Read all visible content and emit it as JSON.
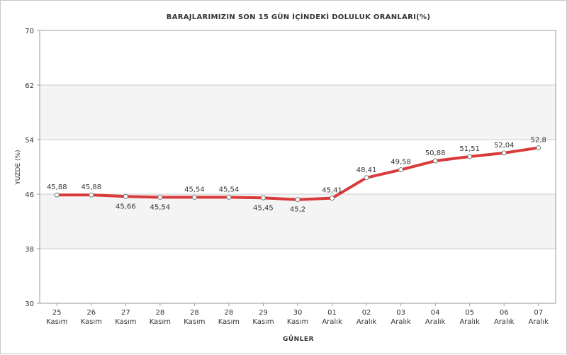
{
  "chart_data": {
    "type": "line",
    "title": "BARAJLARIMIZIN SON 15 GÜN İÇİNDEKİ DOLULUK ORANLARI(%)",
    "xlabel": "GÜNLER",
    "ylabel": "YUZDE (%)",
    "ylim": [
      30,
      70
    ],
    "yticks": [
      30,
      38,
      46,
      54,
      62,
      70
    ],
    "categories": [
      [
        "25",
        "Kasım"
      ],
      [
        "26",
        "Kasım"
      ],
      [
        "27",
        "Kasım"
      ],
      [
        "28",
        "Kasım"
      ],
      [
        "28",
        "Kasım"
      ],
      [
        "28",
        "Kasım"
      ],
      [
        "29",
        "Kasım"
      ],
      [
        "30",
        "Kasım"
      ],
      [
        "01",
        "Aralık"
      ],
      [
        "02",
        "Aralık"
      ],
      [
        "03",
        "Aralık"
      ],
      [
        "04",
        "Aralık"
      ],
      [
        "05",
        "Aralık"
      ],
      [
        "06",
        "Aralık"
      ],
      [
        "07",
        "Aralık"
      ]
    ],
    "series": [
      {
        "values": [
          45.88,
          45.88,
          45.66,
          45.54,
          45.54,
          45.54,
          45.45,
          45.2,
          45.41,
          48.41,
          49.58,
          50.88,
          51.51,
          52.04,
          52.8
        ],
        "labels": [
          "45,88",
          "45,88",
          "45,66",
          "45,54",
          "45,54",
          "45,54",
          "45,45",
          "45,2",
          "45,41",
          "48,41",
          "49,58",
          "50,88",
          "51,51",
          "52,04",
          "52,8"
        ],
        "label_position": [
          "above",
          "above",
          "below",
          "below",
          "above",
          "above",
          "below",
          "below",
          "above",
          "above",
          "above",
          "above",
          "above",
          "above",
          "above"
        ],
        "color": "#d93a3a"
      }
    ],
    "grid": true,
    "band_colors": [
      "#ffffff",
      "#f4f4f4"
    ],
    "grid_color": "#cccccc"
  }
}
